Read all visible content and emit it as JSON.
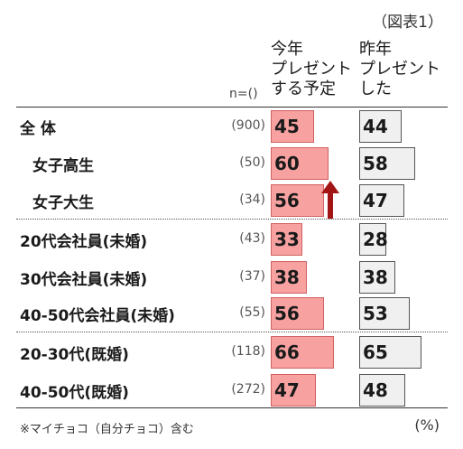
{
  "figure_label": "（図表1）",
  "n_header": "n=()",
  "footnote": "※マイチョコ（自分チョコ）含む",
  "unit": "(%)",
  "colors": {
    "this_year": "#f7a1a1",
    "last_year": "#f0f0f0",
    "arrow": "#a31515"
  },
  "chart_data": {
    "type": "bar",
    "title": "",
    "categories": [
      "全 体",
      "女子高生",
      "女子大生",
      "20代会社員(未婚)",
      "30代会社員(未婚)",
      "40-50代会社員(未婚)",
      "20-30代(既婚)",
      "40-50代(既婚)"
    ],
    "n": [
      "(900)",
      "(50)",
      "(34)",
      "(43)",
      "(37)",
      "(55)",
      "(118)",
      "(272)"
    ],
    "series": [
      {
        "name": "今年プレゼントする予定",
        "header_lines": [
          "今年",
          "プレゼント",
          "する予定"
        ],
        "values": [
          45,
          60,
          56,
          33,
          38,
          56,
          66,
          47
        ]
      },
      {
        "name": "昨年プレゼントした",
        "header_lines": [
          "昨年",
          "プレゼント",
          "した"
        ],
        "values": [
          44,
          58,
          47,
          28,
          38,
          53,
          65,
          48
        ]
      }
    ],
    "ylim": [
      0,
      100
    ],
    "annotations": [
      {
        "category": "女子大生",
        "type": "up-arrow"
      }
    ]
  }
}
